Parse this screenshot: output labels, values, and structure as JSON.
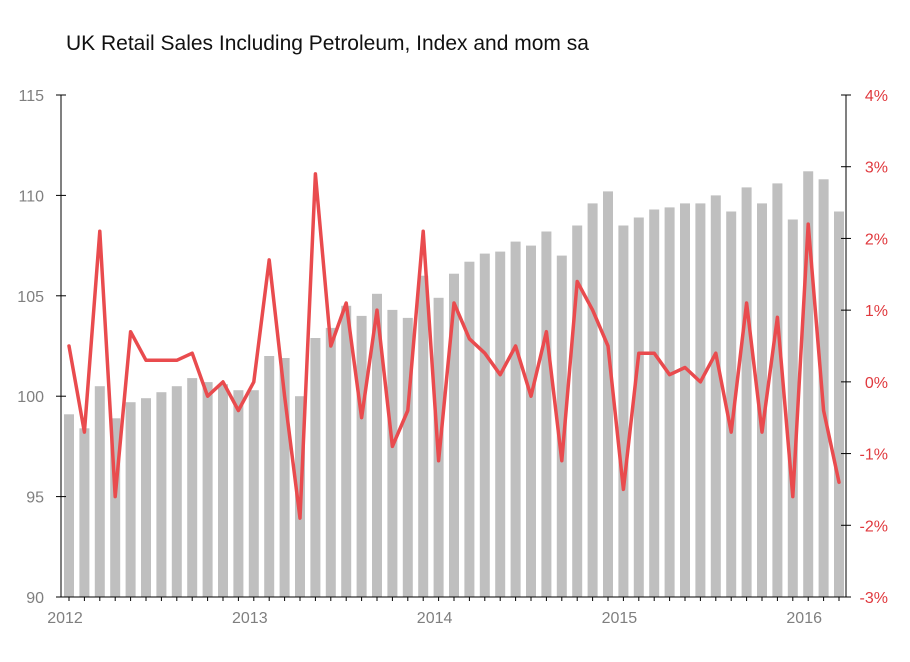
{
  "chart_data": {
    "type": "bar+line",
    "title": "UK Retail Sales Including Petroleum, Index and mom sa",
    "xlabel": "",
    "ylabel_left": "",
    "ylabel_right": "",
    "x_tick_labels": [
      "2012",
      "2013",
      "2014",
      "2015",
      "2016"
    ],
    "left_axis": {
      "min": 90,
      "max": 115,
      "ticks": [
        "90",
        "95",
        "100",
        "105",
        "110",
        "115"
      ]
    },
    "right_axis": {
      "min": -3,
      "max": 4,
      "ticks": [
        "-3%",
        "-2%",
        "-1%",
        "0%",
        "1%",
        "2%",
        "3%",
        "4%"
      ]
    },
    "grid": false,
    "legend": "none",
    "start_month": "2012-01",
    "series": [
      {
        "axis": "left",
        "type": "bar",
        "color": "#bfbfbf",
        "values": [
          99.1,
          98.4,
          100.5,
          98.9,
          99.7,
          99.9,
          100.2,
          100.5,
          100.9,
          100.7,
          100.6,
          100.3,
          100.3,
          102.0,
          101.9,
          100.0,
          102.9,
          103.4,
          104.5,
          104.0,
          105.1,
          104.3,
          103.9,
          106.0,
          104.9,
          106.1,
          106.7,
          107.1,
          107.2,
          107.7,
          107.5,
          108.2,
          107.0,
          108.5,
          109.6,
          110.2,
          108.5,
          108.9,
          109.3,
          109.4,
          109.6,
          109.6,
          110.0,
          109.2,
          110.4,
          109.6,
          110.6,
          108.8,
          111.2,
          110.8,
          109.2
        ]
      },
      {
        "axis": "right",
        "type": "line",
        "color": "#e94b4e",
        "values": [
          0.5,
          -0.7,
          2.1,
          -1.6,
          0.7,
          0.3,
          0.3,
          0.3,
          0.4,
          -0.2,
          0.0,
          -0.4,
          0.0,
          1.7,
          -0.2,
          -1.9,
          2.9,
          0.5,
          1.1,
          -0.5,
          1.0,
          -0.9,
          -0.4,
          2.1,
          -1.1,
          1.1,
          0.6,
          0.4,
          0.1,
          0.5,
          -0.2,
          0.7,
          -1.1,
          1.4,
          1.0,
          0.5,
          -1.5,
          0.4,
          0.4,
          0.1,
          0.2,
          0.0,
          0.4,
          -0.7,
          1.1,
          -0.7,
          0.9,
          -1.6,
          2.2,
          -0.4,
          -1.4
        ]
      }
    ]
  }
}
